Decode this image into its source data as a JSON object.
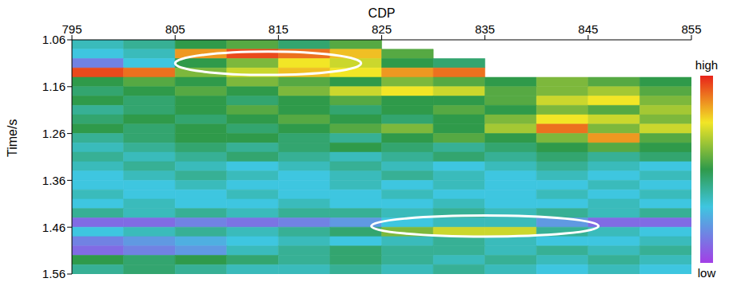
{
  "chart_data": {
    "type": "heatmap",
    "x_label": "CDP",
    "y_label": "Time/s",
    "xlim": [
      795,
      855
    ],
    "xticks": [
      795,
      805,
      815,
      825,
      835,
      845,
      855
    ],
    "ylim": [
      1.06,
      1.56
    ],
    "yticks": [
      1.06,
      1.16,
      1.26,
      1.36,
      1.46,
      1.56
    ],
    "cells": {
      "x": [
        797.5,
        802.5,
        807.5,
        812.5,
        817.5,
        822.5,
        827.5,
        832.5,
        837.5,
        842.5,
        847.5,
        852.5
      ],
      "y": [
        1.07,
        1.09,
        1.11,
        1.13,
        1.15,
        1.17,
        1.19,
        1.21,
        1.23,
        1.25,
        1.27,
        1.29,
        1.31,
        1.33,
        1.35,
        1.37,
        1.39,
        1.41,
        1.43,
        1.45,
        1.47,
        1.49,
        1.51,
        1.53,
        1.55
      ],
      "values": [
        [
          0.35,
          0.4,
          0.5,
          0.55,
          0.45,
          0.55,
          null,
          null,
          null,
          null,
          null,
          null
        ],
        [
          0.3,
          0.35,
          0.85,
          0.95,
          0.9,
          0.8,
          0.55,
          null,
          null,
          null,
          null,
          null
        ],
        [
          0.15,
          0.3,
          0.5,
          0.6,
          0.75,
          0.7,
          0.5,
          0.45,
          null,
          null,
          null,
          null
        ],
        [
          0.95,
          0.9,
          0.6,
          0.7,
          0.8,
          0.75,
          0.85,
          0.9,
          null,
          null,
          null,
          null
        ],
        [
          0.5,
          0.55,
          0.5,
          0.6,
          0.55,
          0.5,
          0.6,
          0.55,
          0.5,
          0.6,
          0.55,
          0.5
        ],
        [
          0.45,
          0.5,
          0.55,
          0.5,
          0.6,
          0.7,
          0.75,
          0.7,
          0.55,
          0.6,
          0.65,
          0.55
        ],
        [
          0.5,
          0.45,
          0.5,
          0.45,
          0.5,
          0.55,
          0.5,
          0.5,
          0.55,
          0.7,
          0.75,
          0.6
        ],
        [
          0.4,
          0.45,
          0.5,
          0.55,
          0.5,
          0.45,
          0.5,
          0.55,
          0.5,
          0.6,
          0.55,
          0.65
        ],
        [
          0.45,
          0.5,
          0.45,
          0.5,
          0.55,
          0.5,
          0.45,
          0.5,
          0.6,
          0.75,
          0.7,
          0.6
        ],
        [
          0.5,
          0.45,
          0.5,
          0.45,
          0.5,
          0.55,
          0.6,
          0.5,
          0.65,
          0.9,
          0.6,
          0.7
        ],
        [
          0.4,
          0.45,
          0.5,
          0.5,
          0.45,
          0.4,
          0.5,
          0.55,
          0.5,
          0.6,
          0.85,
          0.55
        ],
        [
          0.35,
          0.4,
          0.45,
          0.4,
          0.45,
          0.5,
          0.45,
          0.4,
          0.45,
          0.5,
          0.55,
          0.5
        ],
        [
          0.4,
          0.35,
          0.4,
          0.45,
          0.4,
          0.35,
          0.4,
          0.45,
          0.4,
          0.45,
          0.4,
          0.45
        ],
        [
          0.35,
          0.4,
          0.35,
          0.3,
          0.35,
          0.4,
          0.35,
          0.3,
          0.35,
          0.4,
          0.35,
          0.3
        ],
        [
          0.3,
          0.35,
          0.4,
          0.35,
          0.3,
          0.35,
          0.4,
          0.35,
          0.3,
          0.35,
          0.3,
          0.35
        ],
        [
          0.3,
          0.3,
          0.35,
          0.3,
          0.3,
          0.35,
          0.3,
          0.35,
          0.3,
          0.3,
          0.35,
          0.3
        ],
        [
          0.35,
          0.3,
          0.3,
          0.35,
          0.3,
          0.3,
          0.35,
          0.3,
          0.3,
          0.35,
          0.3,
          0.35
        ],
        [
          0.3,
          0.35,
          0.3,
          0.3,
          0.35,
          0.3,
          0.3,
          0.35,
          0.3,
          0.3,
          0.35,
          0.3
        ],
        [
          0.4,
          0.35,
          0.4,
          0.35,
          0.4,
          0.4,
          0.35,
          0.4,
          0.35,
          0.4,
          0.35,
          0.4
        ],
        [
          0.1,
          0.1,
          0.15,
          0.12,
          0.15,
          0.2,
          0.3,
          0.35,
          0.35,
          0.2,
          0.1,
          0.1
        ],
        [
          0.3,
          0.35,
          0.4,
          0.35,
          0.4,
          0.45,
          0.6,
          0.7,
          0.7,
          0.4,
          0.35,
          0.3
        ],
        [
          0.15,
          0.2,
          0.25,
          0.3,
          0.35,
          0.3,
          0.35,
          0.4,
          0.35,
          0.3,
          0.3,
          0.35
        ],
        [
          0.1,
          0.15,
          0.2,
          0.35,
          0.4,
          0.45,
          0.4,
          0.4,
          0.35,
          0.4,
          0.35,
          0.4
        ],
        [
          0.5,
          0.45,
          0.5,
          0.45,
          0.4,
          0.45,
          0.4,
          0.35,
          0.4,
          0.35,
          0.4,
          0.35
        ],
        [
          0.4,
          0.45,
          0.4,
          0.35,
          0.35,
          0.4,
          0.35,
          0.4,
          0.35,
          0.3,
          0.35,
          0.3
        ]
      ]
    },
    "colorbar": {
      "range": [
        0,
        1
      ],
      "ticks": [
        {
          "value": 1,
          "label": "high"
        },
        {
          "value": 0,
          "label": "low"
        }
      ]
    }
  }
}
